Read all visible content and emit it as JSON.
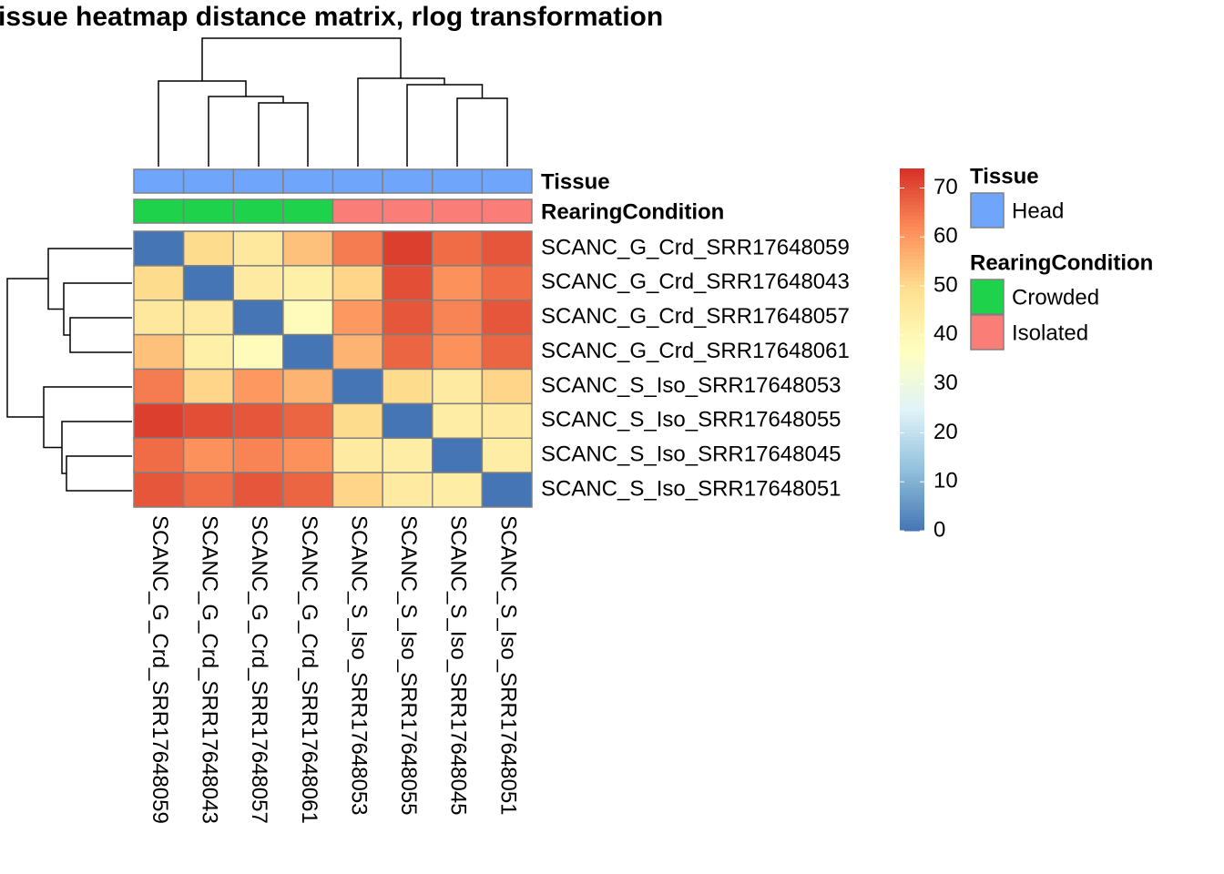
{
  "chart_data": {
    "type": "heatmap",
    "title": "issue heatmap distance matrix, rlog transformation",
    "rows": [
      "SCANC_G_Crd_SRR17648059",
      "SCANC_G_Crd_SRR17648043",
      "SCANC_G_Crd_SRR17648057",
      "SCANC_G_Crd_SRR17648061",
      "SCANC_S_Iso_SRR17648053",
      "SCANC_S_Iso_SRR17648055",
      "SCANC_S_Iso_SRR17648045",
      "SCANC_S_Iso_SRR17648051"
    ],
    "columns": [
      "SCANC_G_Crd_SRR17648059",
      "SCANC_G_Crd_SRR17648043",
      "SCANC_G_Crd_SRR17648057",
      "SCANC_G_Crd_SRR17648061",
      "SCANC_S_Iso_SRR17648053",
      "SCANC_S_Iso_SRR17648055",
      "SCANC_S_Iso_SRR17648045",
      "SCANC_S_Iso_SRR17648051"
    ],
    "values": [
      [
        0,
        50,
        46,
        54,
        64,
        72,
        66,
        69
      ],
      [
        50,
        0,
        45,
        43,
        51,
        70,
        61,
        66
      ],
      [
        46,
        45,
        0,
        38,
        60,
        69,
        63,
        69
      ],
      [
        54,
        43,
        38,
        0,
        56,
        67,
        61,
        67
      ],
      [
        64,
        51,
        60,
        56,
        0,
        50,
        45,
        51
      ],
      [
        72,
        70,
        69,
        67,
        50,
        0,
        44,
        45
      ],
      [
        66,
        61,
        63,
        61,
        45,
        44,
        0,
        44
      ],
      [
        69,
        66,
        69,
        67,
        51,
        45,
        44,
        0
      ]
    ],
    "zlim": [
      0,
      74
    ],
    "zticks": [
      0,
      10,
      20,
      30,
      40,
      50,
      60,
      70
    ],
    "colors": [
      "#4575b4",
      "#91bfdb",
      "#e0f3f8",
      "#ffffbf",
      "#fee090",
      "#fc8d59",
      "#d73027"
    ],
    "annotations": [
      {
        "name": "Tissue",
        "values": [
          "Head",
          "Head",
          "Head",
          "Head",
          "Head",
          "Head",
          "Head",
          "Head"
        ],
        "levels": [
          {
            "name": "Head",
            "color": "#6fa6fc"
          }
        ]
      },
      {
        "name": "RearingCondition",
        "values": [
          "Crowded",
          "Crowded",
          "Crowded",
          "Crowded",
          "Isolated",
          "Isolated",
          "Isolated",
          "Isolated"
        ],
        "levels": [
          {
            "name": "Crowded",
            "color": "#1ed34b"
          },
          {
            "name": "Isolated",
            "color": "#fb7d78"
          }
        ]
      }
    ]
  }
}
